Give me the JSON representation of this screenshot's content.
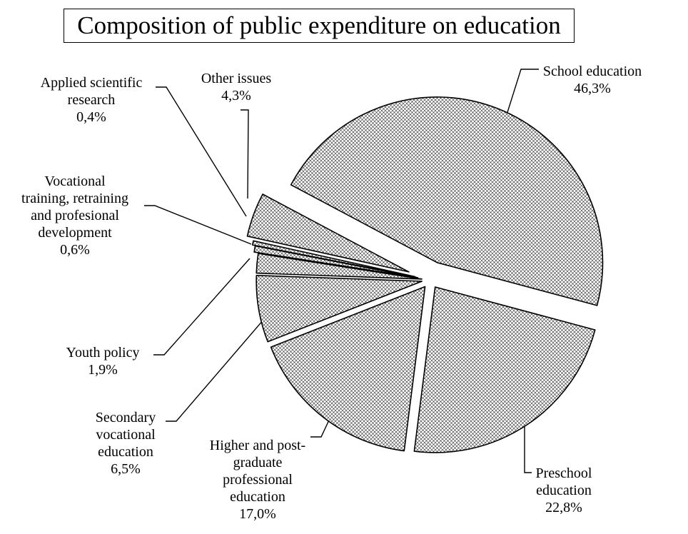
{
  "chart_data": {
    "type": "pie",
    "title": "Composition of public expenditure on education",
    "slices": [
      {
        "name": "School education",
        "value": 46.3,
        "label_lines": [
          "School education",
          "46,3%"
        ]
      },
      {
        "name": "Preschool education",
        "value": 22.8,
        "label_lines": [
          "Preschool",
          "education",
          "22,8%"
        ]
      },
      {
        "name": "Higher and post-graduate professional education",
        "value": 17.0,
        "label_lines": [
          "Higher and post-",
          "graduate",
          "professional",
          "education",
          "17,0%"
        ]
      },
      {
        "name": "Secondary vocational education",
        "value": 6.5,
        "label_lines": [
          "Secondary",
          "vocational",
          "education",
          "6,5%"
        ]
      },
      {
        "name": "Youth policy",
        "value": 1.9,
        "label_lines": [
          "Youth policy",
          "1,9%"
        ]
      },
      {
        "name": "Vocational training, retraining and profesional development",
        "value": 0.6,
        "label_lines": [
          "Vocational",
          "training, retraining",
          "and profesional",
          "development",
          "0,6%"
        ]
      },
      {
        "name": "Applied scientific research",
        "value": 0.4,
        "label_lines": [
          "Applied scientific",
          "research",
          "0,4%"
        ]
      },
      {
        "name": "Other issues",
        "value": 4.3,
        "label_lines": [
          "Other issues",
          "4,3%"
        ]
      }
    ],
    "fill_pattern": "crosshatch",
    "legend": "none"
  }
}
